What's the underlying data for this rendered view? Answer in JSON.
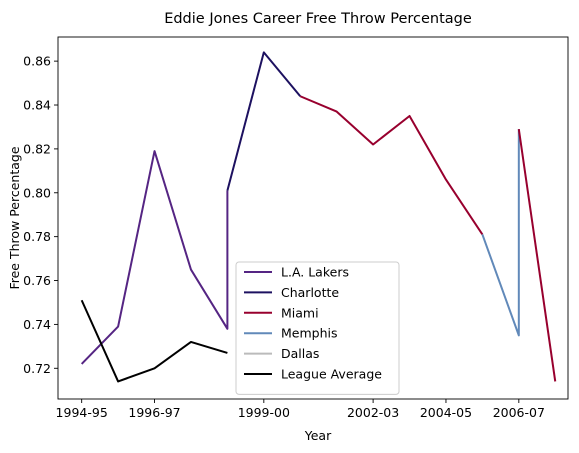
{
  "chart_data": {
    "type": "line",
    "title": "Eddie Jones  Career Free Throw Percentage",
    "xlabel": "Year",
    "ylabel": "Free Throw Percentage",
    "x_tick_labels": [
      "1994-95",
      "1996-97",
      "1999-00",
      "2002-03",
      "2004-05",
      "2006-07"
    ],
    "y_tick_labels": [
      "0.72",
      "0.74",
      "0.76",
      "0.78",
      "0.80",
      "0.82",
      "0.84",
      "0.86"
    ],
    "xlim": [
      "1994-95",
      "2007-08"
    ],
    "ylim": [
      0.706,
      0.871
    ],
    "grid": false,
    "legend_position": "lower center",
    "series": [
      {
        "name": "L.A. Lakers",
        "color": "#552583",
        "points": [
          {
            "x": "1994-95",
            "y": 0.722
          },
          {
            "x": "1995-96",
            "y": 0.739
          },
          {
            "x": "1996-97",
            "y": 0.819
          },
          {
            "x": "1997-98",
            "y": 0.765
          },
          {
            "x": "1998-99",
            "y": 0.738
          },
          {
            "x": "1998-99",
            "y": 0.801
          }
        ]
      },
      {
        "name": "Charlotte",
        "color": "#1d1160",
        "points": [
          {
            "x": "1998-99",
            "y": 0.801
          },
          {
            "x": "1999-00",
            "y": 0.864
          },
          {
            "x": "2000-01",
            "y": 0.844
          }
        ]
      },
      {
        "name": "Miami",
        "color": "#98002e",
        "points": [
          {
            "x": "2000-01",
            "y": 0.844
          },
          {
            "x": "2001-02",
            "y": 0.837
          },
          {
            "x": "2002-03",
            "y": 0.822
          },
          {
            "x": "2003-04",
            "y": 0.835
          },
          {
            "x": "2004-05",
            "y": 0.806
          },
          {
            "x": "2005-06",
            "y": 0.781
          }
        ]
      },
      {
        "name": "Memphis",
        "color": "#6189b9",
        "points": [
          {
            "x": "2005-06",
            "y": 0.781
          },
          {
            "x": "2006-07",
            "y": 0.735
          },
          {
            "x": "2006-07",
            "y": 0.829
          }
        ]
      },
      {
        "name": "Miami",
        "color": "#98002e",
        "points": [
          {
            "x": "2006-07",
            "y": 0.829
          },
          {
            "x": "2007-08",
            "y": 0.714
          }
        ]
      },
      {
        "name": "Dallas",
        "color": "#bbbbbb",
        "points": []
      },
      {
        "name": "League Average",
        "color": "#000000",
        "points": [
          {
            "x": "1994-95",
            "y": 0.751
          },
          {
            "x": "1995-96",
            "y": 0.714
          },
          {
            "x": "1996-97",
            "y": 0.72
          },
          {
            "x": "1997-98",
            "y": 0.732
          },
          {
            "x": "1998-99",
            "y": 0.727
          }
        ]
      }
    ],
    "legend": [
      {
        "label": "L.A. Lakers",
        "color": "#552583"
      },
      {
        "label": "Charlotte",
        "color": "#1d1160"
      },
      {
        "label": "Miami",
        "color": "#98002e"
      },
      {
        "label": "Memphis",
        "color": "#6189b9"
      },
      {
        "label": "Dallas",
        "color": "#bbbbbb"
      },
      {
        "label": "League Average",
        "color": "#000000"
      }
    ]
  }
}
